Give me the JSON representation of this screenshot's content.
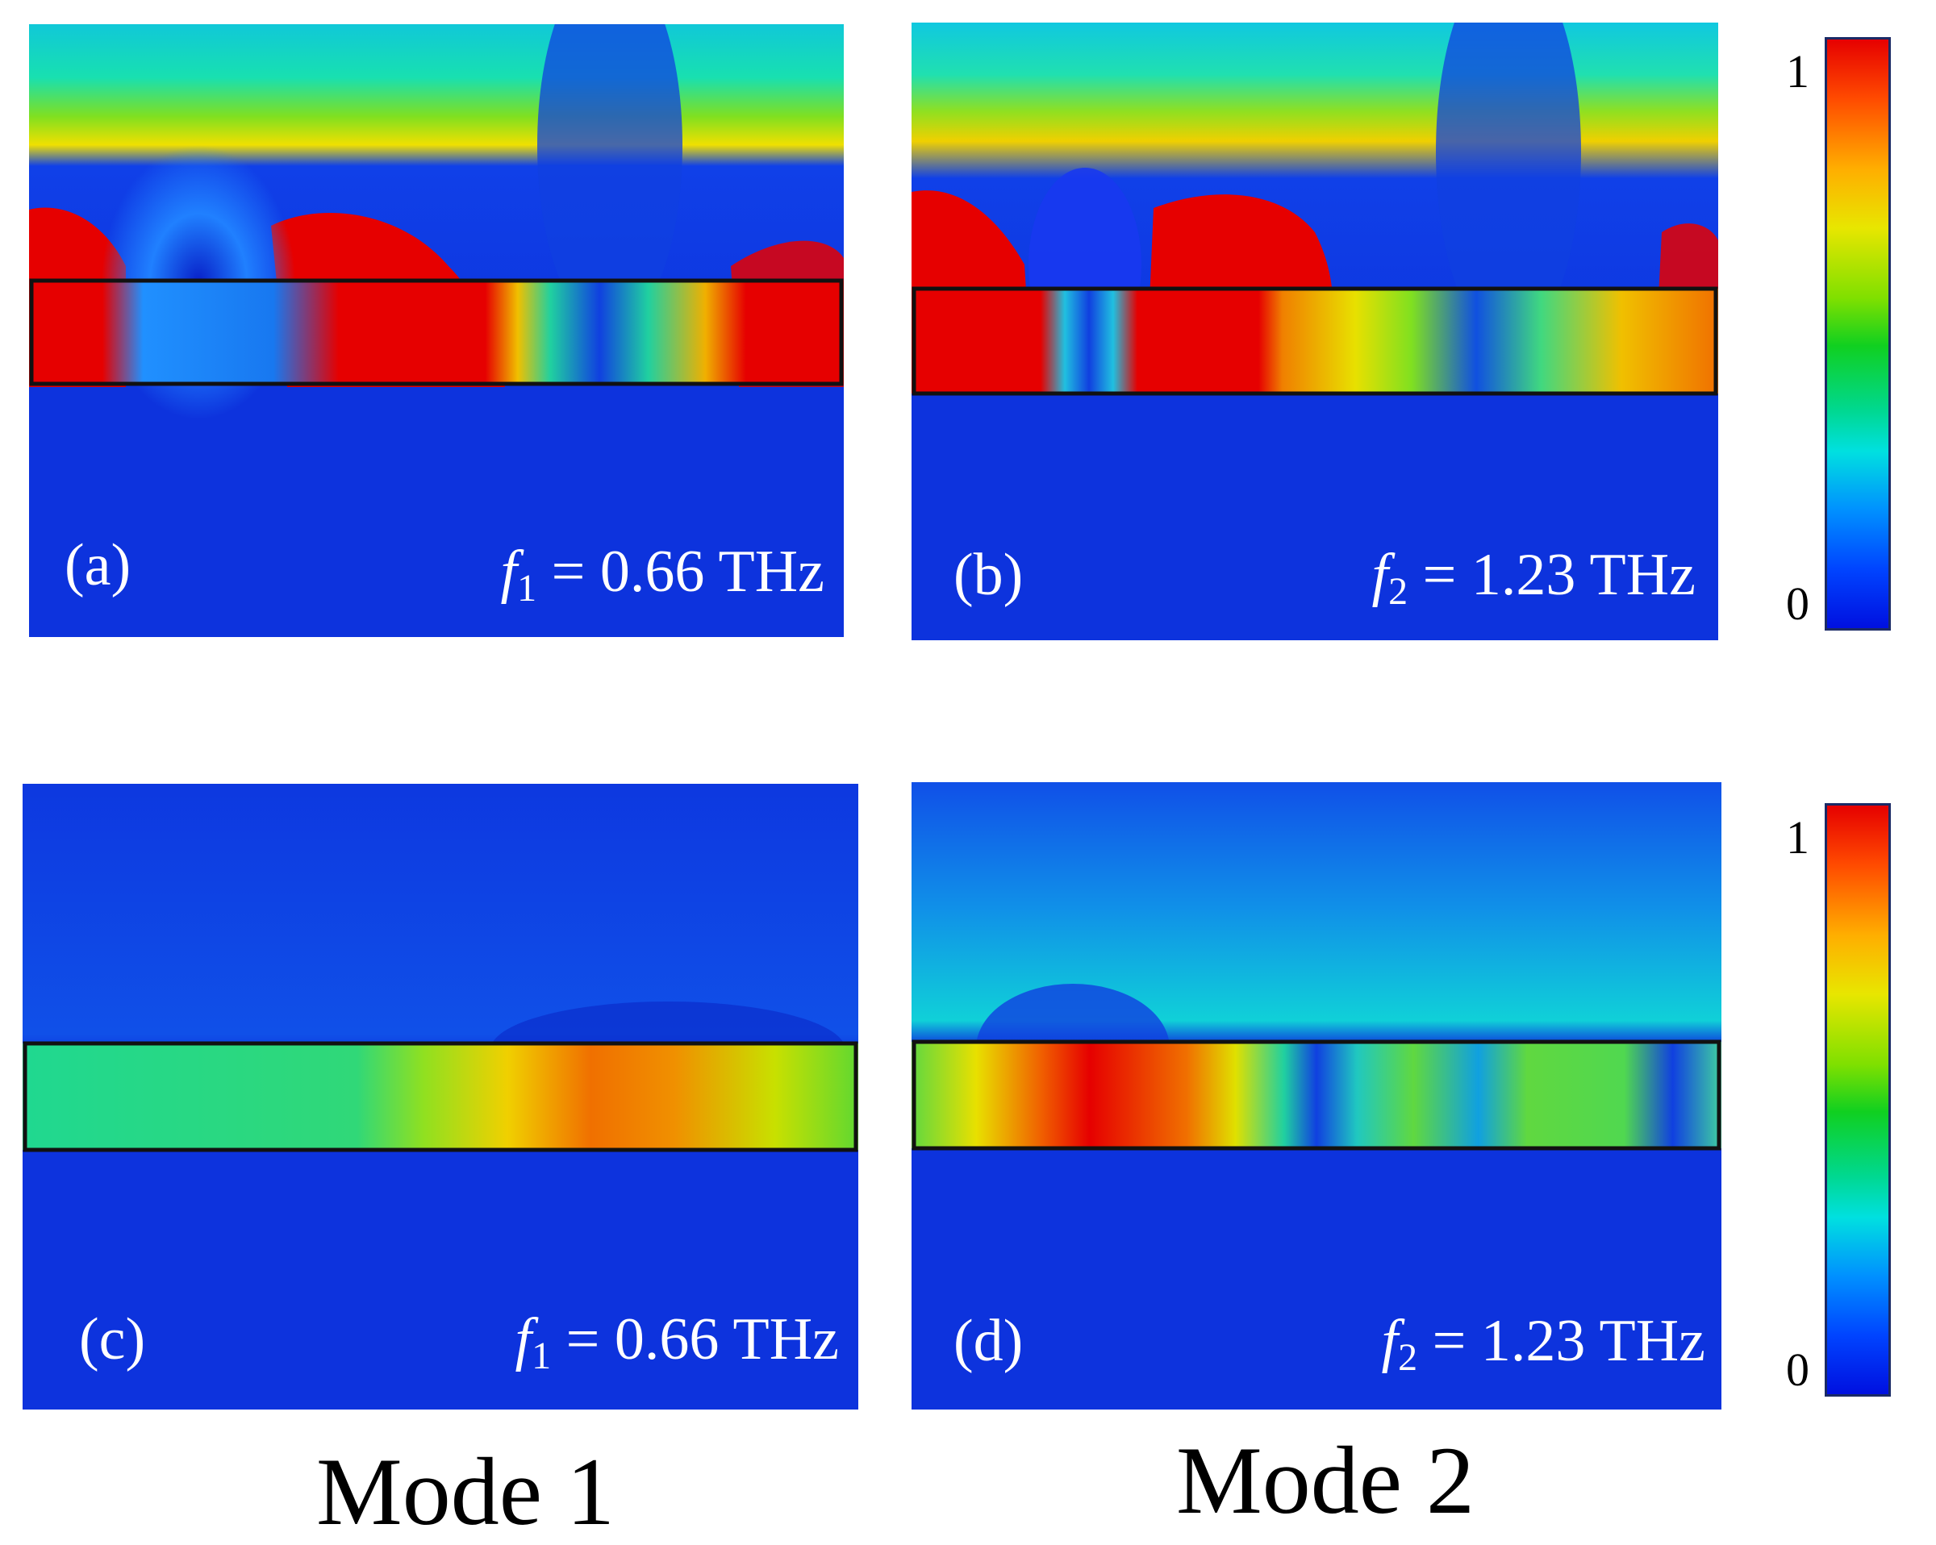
{
  "panels": [
    {
      "id": "a",
      "label": "(a)",
      "freq_symbol": "f",
      "freq_sub": "1",
      "freq_value": "= 0.66 THz"
    },
    {
      "id": "b",
      "label": "(b)",
      "freq_symbol": "f",
      "freq_sub": "2",
      "freq_value": "= 1.23 THz"
    },
    {
      "id": "c",
      "label": "(c)",
      "freq_symbol": "f",
      "freq_sub": "1",
      "freq_value": "= 0.66 THz"
    },
    {
      "id": "d",
      "label": "(d)",
      "freq_symbol": "f",
      "freq_sub": "2",
      "freq_value": "= 1.23 THz"
    }
  ],
  "colorbars": [
    {
      "max_label": "1",
      "min_label": "0"
    },
    {
      "max_label": "1",
      "min_label": "0"
    }
  ],
  "mode_labels": [
    "Mode 1",
    "Mode 2"
  ],
  "colors": {
    "low": "#0d33dd",
    "high": "#e60000",
    "outline": "#111111"
  }
}
